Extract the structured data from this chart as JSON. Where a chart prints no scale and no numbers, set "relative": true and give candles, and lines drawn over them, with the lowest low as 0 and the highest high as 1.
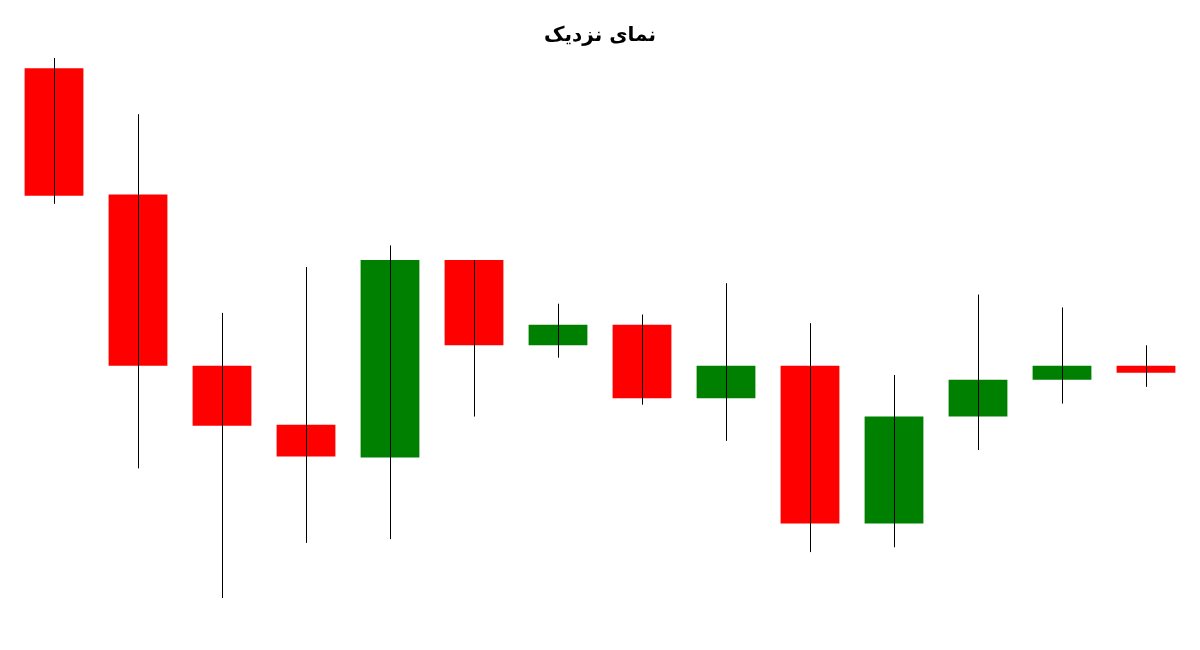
{
  "chart_data": {
    "type": "candlestick",
    "title": "نمای نزدیک",
    "relative": true,
    "categories": [
      null,
      null,
      null,
      null,
      null,
      null,
      null,
      null,
      null,
      null,
      null,
      null,
      null,
      null
    ],
    "ohlc": [
      [
        0.981,
        1.0,
        0.73,
        0.745
      ],
      [
        0.747,
        0.896,
        0.24,
        0.43
      ],
      [
        0.43,
        0.528,
        0.0,
        0.319
      ],
      [
        0.321,
        0.613,
        0.102,
        0.262
      ],
      [
        0.26,
        0.653,
        0.109,
        0.626
      ],
      [
        0.626,
        0.626,
        0.336,
        0.468
      ],
      [
        0.468,
        0.545,
        0.445,
        0.506
      ],
      [
        0.506,
        0.525,
        0.358,
        0.37
      ],
      [
        0.37,
        0.583,
        0.291,
        0.43
      ],
      [
        0.43,
        0.509,
        0.085,
        0.138
      ],
      [
        0.138,
        0.413,
        0.094,
        0.336
      ],
      [
        0.336,
        0.562,
        0.274,
        0.404
      ],
      [
        0.404,
        0.538,
        0.36,
        0.43
      ],
      [
        0.43,
        0.468,
        0.391,
        0.417
      ]
    ],
    "colors": [
      "#ff0000",
      "#ff0000",
      "#ff0000",
      "#ff0000",
      "#008000",
      "#ff0000",
      "#008000",
      "#ff0000",
      "#008000",
      "#ff0000",
      "#008000",
      "#008000",
      "#008000",
      "#ff0000"
    ]
  }
}
